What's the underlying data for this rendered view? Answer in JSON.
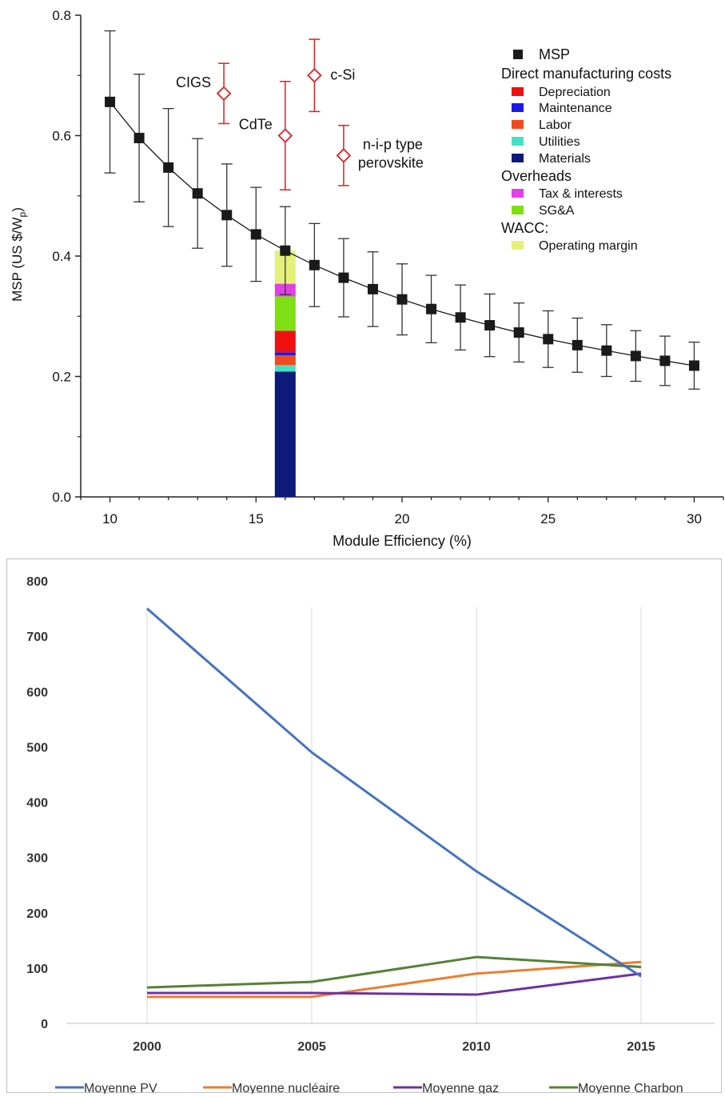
{
  "chart_data": [
    {
      "type": "line",
      "title": "",
      "xlabel": "Module Efficiency (%)",
      "ylabel": "MSP (US $/W",
      "ylabel_sub": "p",
      "ylabel_close": ")",
      "xlim": [
        9,
        31
      ],
      "ylim": [
        0,
        0.8
      ],
      "xticks": [
        10,
        15,
        20,
        25,
        30
      ],
      "yticks": [
        0.0,
        0.2,
        0.4,
        0.6,
        0.8
      ],
      "xtick_labels": [
        "10",
        "15",
        "20",
        "25",
        "30"
      ],
      "ytick_labels": [
        "0.0",
        "0.2",
        "0.4",
        "0.6",
        "0.8"
      ],
      "series": [
        {
          "name": "MSP",
          "color": "#1a1a1a",
          "x": [
            10,
            11,
            12,
            13,
            14,
            15,
            16,
            17,
            18,
            19,
            20,
            21,
            22,
            23,
            24,
            25,
            26,
            27,
            28,
            29,
            30
          ],
          "y": [
            0.656,
            0.596,
            0.547,
            0.504,
            0.468,
            0.436,
            0.409,
            0.385,
            0.364,
            0.345,
            0.328,
            0.312,
            0.298,
            0.285,
            0.273,
            0.262,
            0.252,
            0.243,
            0.234,
            0.226,
            0.218
          ],
          "err": [
            0.118,
            0.106,
            0.098,
            0.091,
            0.085,
            0.078,
            0.073,
            0.069,
            0.065,
            0.062,
            0.059,
            0.056,
            0.054,
            0.052,
            0.049,
            0.047,
            0.045,
            0.043,
            0.042,
            0.041,
            0.039
          ]
        }
      ],
      "benchmarks": [
        {
          "label": "CIGS",
          "x": 13.9,
          "y": 0.67,
          "err": 0.05,
          "label_anchor": "left"
        },
        {
          "label": "CdTe",
          "x": 16.0,
          "y": 0.6,
          "err": 0.09,
          "label_anchor": "left"
        },
        {
          "label": "c-Si",
          "x": 17.0,
          "y": 0.7,
          "err": 0.06,
          "label_anchor": "right"
        },
        {
          "label": "n-i-p type",
          "label2": "perovskite",
          "x": 18.0,
          "y": 0.567,
          "err": 0.05,
          "label_anchor": "right"
        }
      ],
      "benchmark_color": "#e02020",
      "stacked_bar": {
        "x": 16.0,
        "segments": [
          {
            "name": "Materials",
            "from": 0.0,
            "to": 0.208,
            "color": "#0d1a7a"
          },
          {
            "name": "Utilities",
            "from": 0.208,
            "to": 0.219,
            "color": "#45e0c8"
          },
          {
            "name": "Labor",
            "from": 0.219,
            "to": 0.235,
            "color": "#f04a1e"
          },
          {
            "name": "Maintenance",
            "from": 0.235,
            "to": 0.24,
            "color": "#1a1ae6"
          },
          {
            "name": "Depreciation",
            "from": 0.24,
            "to": 0.276,
            "color": "#f01010"
          },
          {
            "name": "SG&A",
            "from": 0.276,
            "to": 0.333,
            "color": "#7ee013"
          },
          {
            "name": "Tax & interests",
            "from": 0.333,
            "to": 0.354,
            "color": "#e040e6"
          },
          {
            "name": "Operating margin",
            "from": 0.354,
            "to": 0.409,
            "color": "#e4f07a"
          }
        ]
      },
      "legend": {
        "placement": "top-right",
        "entries": [
          {
            "kind": "item",
            "label": "MSP",
            "color": "#1a1a1a"
          },
          {
            "kind": "header",
            "label": "Direct manufacturing costs"
          },
          {
            "kind": "item",
            "label": "Depreciation",
            "color": "#f01010"
          },
          {
            "kind": "item",
            "label": "Maintenance",
            "color": "#1a1ae6"
          },
          {
            "kind": "item",
            "label": "Labor",
            "color": "#f04a1e"
          },
          {
            "kind": "item",
            "label": "Utilities",
            "color": "#45e0c8"
          },
          {
            "kind": "item",
            "label": "Materials",
            "color": "#0d1a7a"
          },
          {
            "kind": "header",
            "label": "Overheads"
          },
          {
            "kind": "item",
            "label": "Tax & interests",
            "color": "#e040e6"
          },
          {
            "kind": "item",
            "label": "SG&A",
            "color": "#7ee013"
          },
          {
            "kind": "header",
            "label": "WACC:"
          },
          {
            "kind": "item",
            "label": "Operating margin",
            "color": "#e4f07a"
          }
        ]
      }
    },
    {
      "type": "line",
      "title": "",
      "xlabel": "",
      "ylabel": "",
      "categories": [
        "2000",
        "2005",
        "2010",
        "2015"
      ],
      "ylim": [
        0,
        800
      ],
      "yticks": [
        0,
        100,
        200,
        300,
        400,
        500,
        600,
        700,
        800
      ],
      "ytick_labels": [
        "0",
        "100",
        "200",
        "300",
        "400",
        "500",
        "600",
        "700",
        "800"
      ],
      "grid": "vertical",
      "legend_placement": "bottom",
      "series": [
        {
          "name": "Moyenne PV",
          "color": "#4472c4",
          "values": [
            750,
            490,
            275,
            85
          ]
        },
        {
          "name": "Moyenne nucléaire",
          "color": "#ed7d31",
          "values": [
            48,
            48,
            90,
            111
          ]
        },
        {
          "name": "Moyenne gaz",
          "color": "#7030a0",
          "values": [
            55,
            55,
            52,
            90
          ]
        },
        {
          "name": "Moyenne Charbon",
          "color": "#548235",
          "values": [
            65,
            75,
            120,
            102
          ]
        }
      ]
    }
  ]
}
